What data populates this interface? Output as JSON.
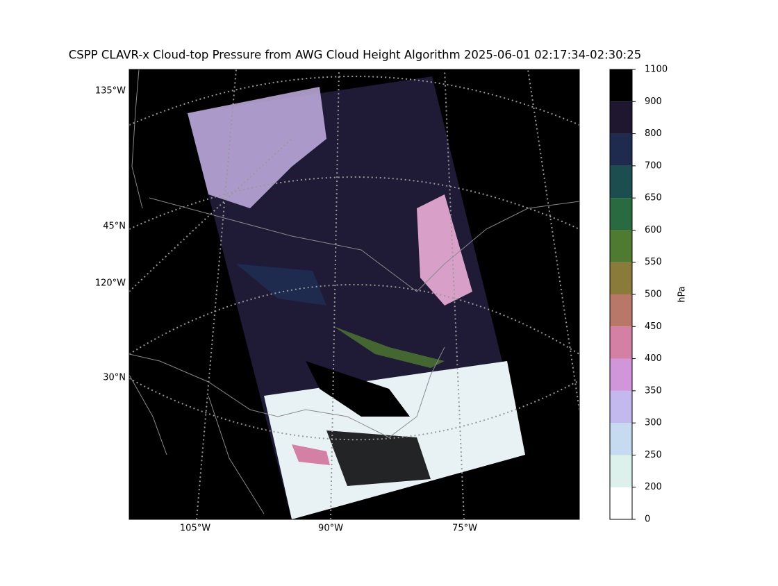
{
  "title": "CSPP CLAVR-x Cloud-top Pressure from AWG Cloud Height Algorithm 2025-06-01 02:17:34-02:30:25",
  "map": {
    "left_labels": [
      "135°W",
      "45°N",
      "120°W",
      "30°N"
    ],
    "bottom_labels": [
      "105°W",
      "90°W",
      "75°W"
    ]
  },
  "colorbar": {
    "label": "hPa",
    "boundaries": [
      0,
      200,
      250,
      300,
      350,
      400,
      450,
      500,
      550,
      600,
      650,
      700,
      800,
      900,
      1100
    ],
    "colors": [
      "#ffffff",
      "#dcf1ec",
      "#c6dbf0",
      "#c4b9ee",
      "#d196d9",
      "#d47fa4",
      "#b97867",
      "#8b7b3b",
      "#4e7a31",
      "#2a6a41",
      "#1c4e50",
      "#1e2b4f",
      "#1f1630",
      "#000000"
    ]
  }
}
